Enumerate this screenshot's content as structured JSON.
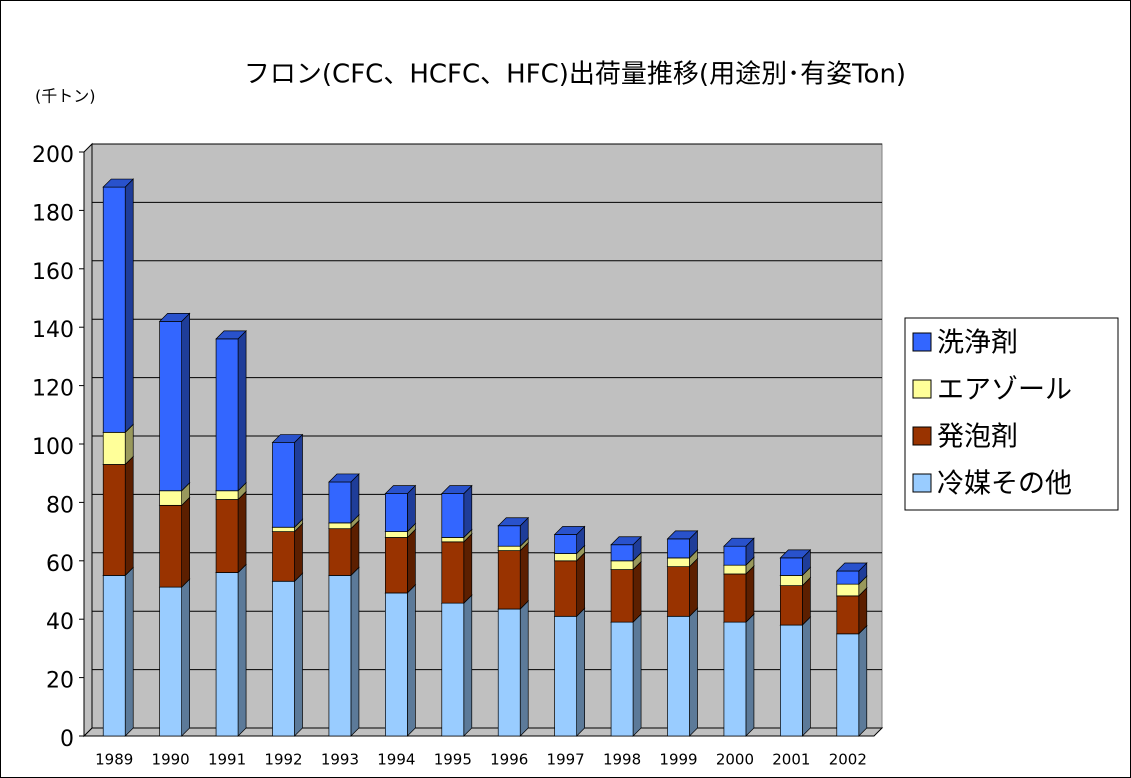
{
  "chart_data": {
    "type": "bar3d_stacked",
    "title": "フロン(CFC、HCFC、HFC)出荷量推移(用途別･有姿Ton)",
    "y_label": "(千トン)",
    "categories": [
      "1989",
      "1990",
      "1991",
      "1992",
      "1993",
      "1994",
      "1995",
      "1996",
      "1997",
      "1998",
      "1999",
      "2000",
      "2001",
      "2002"
    ],
    "series": [
      {
        "name": "冷媒その他",
        "color": "#99ccff",
        "values": [
          55,
          51,
          56,
          53,
          55,
          49,
          45.5,
          43.5,
          41,
          39,
          41,
          39,
          38,
          35
        ]
      },
      {
        "name": "発泡剤",
        "color": "#993300",
        "values": [
          38,
          28,
          25,
          17,
          16,
          19,
          21,
          20,
          19,
          18,
          17,
          16.5,
          13.5,
          13
        ]
      },
      {
        "name": "エアゾール",
        "color": "#ffff99",
        "values": [
          11,
          5,
          3,
          1.5,
          2,
          2,
          1.5,
          1.5,
          2.5,
          3,
          3,
          3,
          3.5,
          4
        ]
      },
      {
        "name": "洗浄剤",
        "color": "#3366ff",
        "values": [
          84,
          58,
          52,
          29,
          14,
          13,
          15,
          7,
          6.5,
          5.5,
          6.5,
          6.5,
          6,
          4.5
        ]
      }
    ],
    "ylim": [
      0,
      200
    ],
    "yticks": [
      0,
      20,
      40,
      60,
      80,
      100,
      120,
      140,
      160,
      180,
      200
    ],
    "grid": true,
    "legend": "right"
  }
}
